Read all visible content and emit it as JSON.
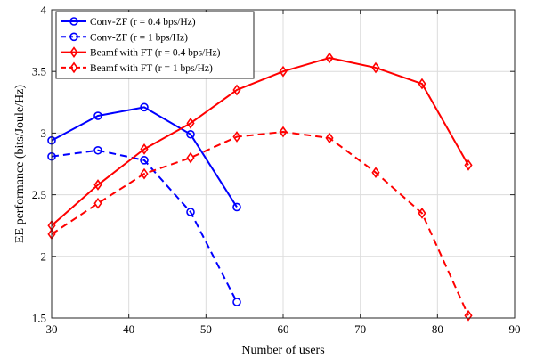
{
  "chart_data": {
    "type": "line",
    "xlabel": "Number of users",
    "ylabel": "EE performance (bits/Joule/Hz)",
    "xlim": [
      30,
      90
    ],
    "ylim": [
      1.5,
      4
    ],
    "xticks": [
      30,
      40,
      50,
      60,
      70,
      80,
      90
    ],
    "yticks": [
      1.5,
      2,
      2.5,
      3,
      3.5,
      4
    ],
    "xtick_labels": [
      "30",
      "40",
      "50",
      "60",
      "70",
      "80",
      "90"
    ],
    "ytick_labels": [
      "1.5",
      "2",
      "2.5",
      "3",
      "3.5",
      "4"
    ],
    "grid": true,
    "legend_position": "top-left",
    "series": [
      {
        "name": "Conv-ZF (r = 0.4 bps/Hz)",
        "color": "#0000ff",
        "line_style": "solid",
        "marker": "circle",
        "x": [
          30,
          36,
          42,
          48,
          54
        ],
        "y": [
          2.94,
          3.14,
          3.21,
          2.99,
          2.4
        ]
      },
      {
        "name": "Conv-ZF (r = 1 bps/Hz)",
        "color": "#0000ff",
        "line_style": "dashed",
        "marker": "circle",
        "x": [
          30,
          36,
          42,
          48,
          54
        ],
        "y": [
          2.81,
          2.86,
          2.78,
          2.36,
          1.63
        ]
      },
      {
        "name": "Beamf with FT (r = 0.4 bps/Hz)",
        "color": "#ff0000",
        "line_style": "solid",
        "marker": "diamond",
        "x": [
          30,
          36,
          42,
          48,
          54,
          60,
          66,
          72,
          78,
          84
        ],
        "y": [
          2.25,
          2.58,
          2.87,
          3.08,
          3.35,
          3.5,
          3.61,
          3.53,
          3.4,
          2.74
        ]
      },
      {
        "name": "Beamf with FT (r = 1 bps/Hz)",
        "color": "#ff0000",
        "line_style": "dashed",
        "marker": "diamond",
        "x": [
          30,
          36,
          42,
          48,
          54,
          60,
          66,
          72,
          78,
          84
        ],
        "y": [
          2.18,
          2.43,
          2.67,
          2.8,
          2.97,
          3.01,
          2.96,
          2.68,
          2.35,
          1.52
        ]
      }
    ]
  }
}
